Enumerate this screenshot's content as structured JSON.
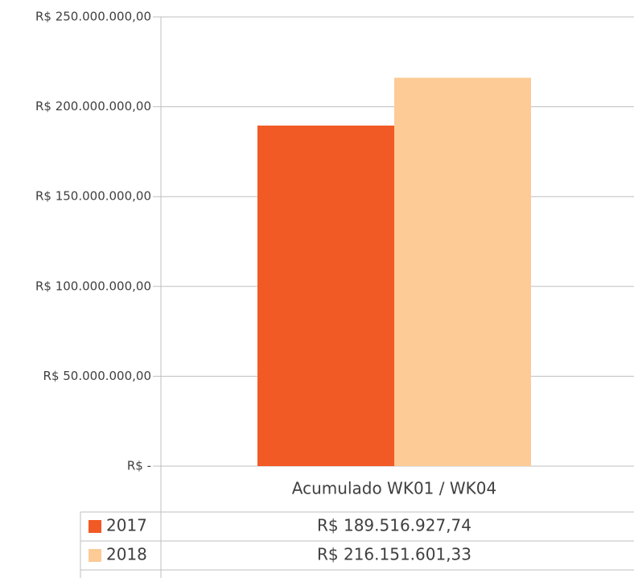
{
  "chart_data": {
    "type": "bar",
    "categories": [
      "Acumulado WK01 / WK04"
    ],
    "series": [
      {
        "name": "2017",
        "color": "#f15a24",
        "values": [
          189516927.74
        ],
        "value_labels": [
          "R$ 189.516.927,74"
        ]
      },
      {
        "name": "2018",
        "color": "#fccb96",
        "values": [
          216151601.33
        ],
        "value_labels": [
          "R$ 216.151.601,33"
        ]
      }
    ],
    "ylim": [
      0,
      250000000
    ],
    "yticks": [
      {
        "value": 0,
        "label": "R$ -"
      },
      {
        "value": 50000000,
        "label": "R$ 50.000.000,00"
      },
      {
        "value": 100000000,
        "label": "R$ 100.000.000,00"
      },
      {
        "value": 150000000,
        "label": "R$ 150.000.000,00"
      },
      {
        "value": 200000000,
        "label": "R$ 200.000.000,00"
      },
      {
        "value": 250000000,
        "label": "R$ 250.000.000,00"
      }
    ],
    "grid": true,
    "data_table": true
  }
}
